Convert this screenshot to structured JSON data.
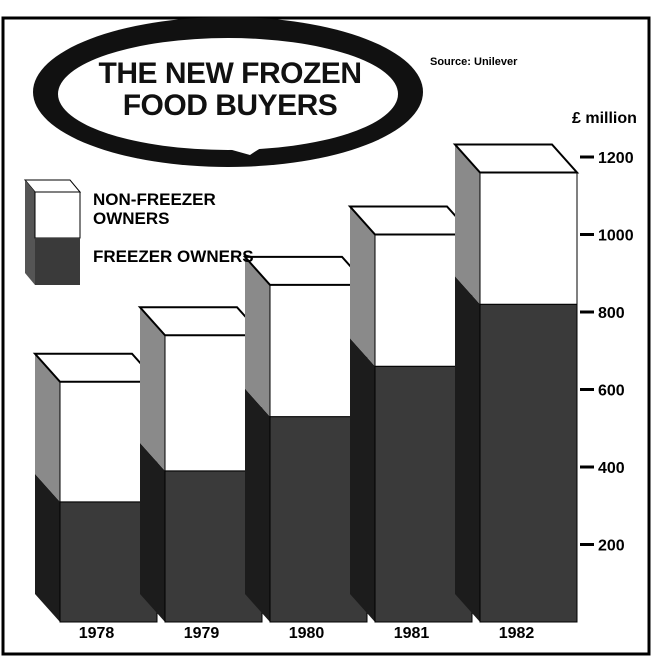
{
  "chart_data": {
    "type": "bar3d-stacked",
    "title": "THE NEW FROZEN FOOD BUYERS",
    "source": "Source: Unilever",
    "y_axis_label": "£ million",
    "categories": [
      "1978",
      "1979",
      "1980",
      "1981",
      "1982"
    ],
    "series": [
      {
        "name": "FREEZER OWNERS",
        "color": "#3a3a3a",
        "values": [
          310,
          390,
          530,
          660,
          820
        ]
      },
      {
        "name": "NON-FREEZER OWNERS",
        "color": "#ffffff",
        "values": [
          310,
          350,
          340,
          340,
          340
        ]
      }
    ],
    "ylim": [
      0,
      1200
    ],
    "yticks": [
      200,
      400,
      600,
      800,
      1000,
      1200
    ]
  }
}
